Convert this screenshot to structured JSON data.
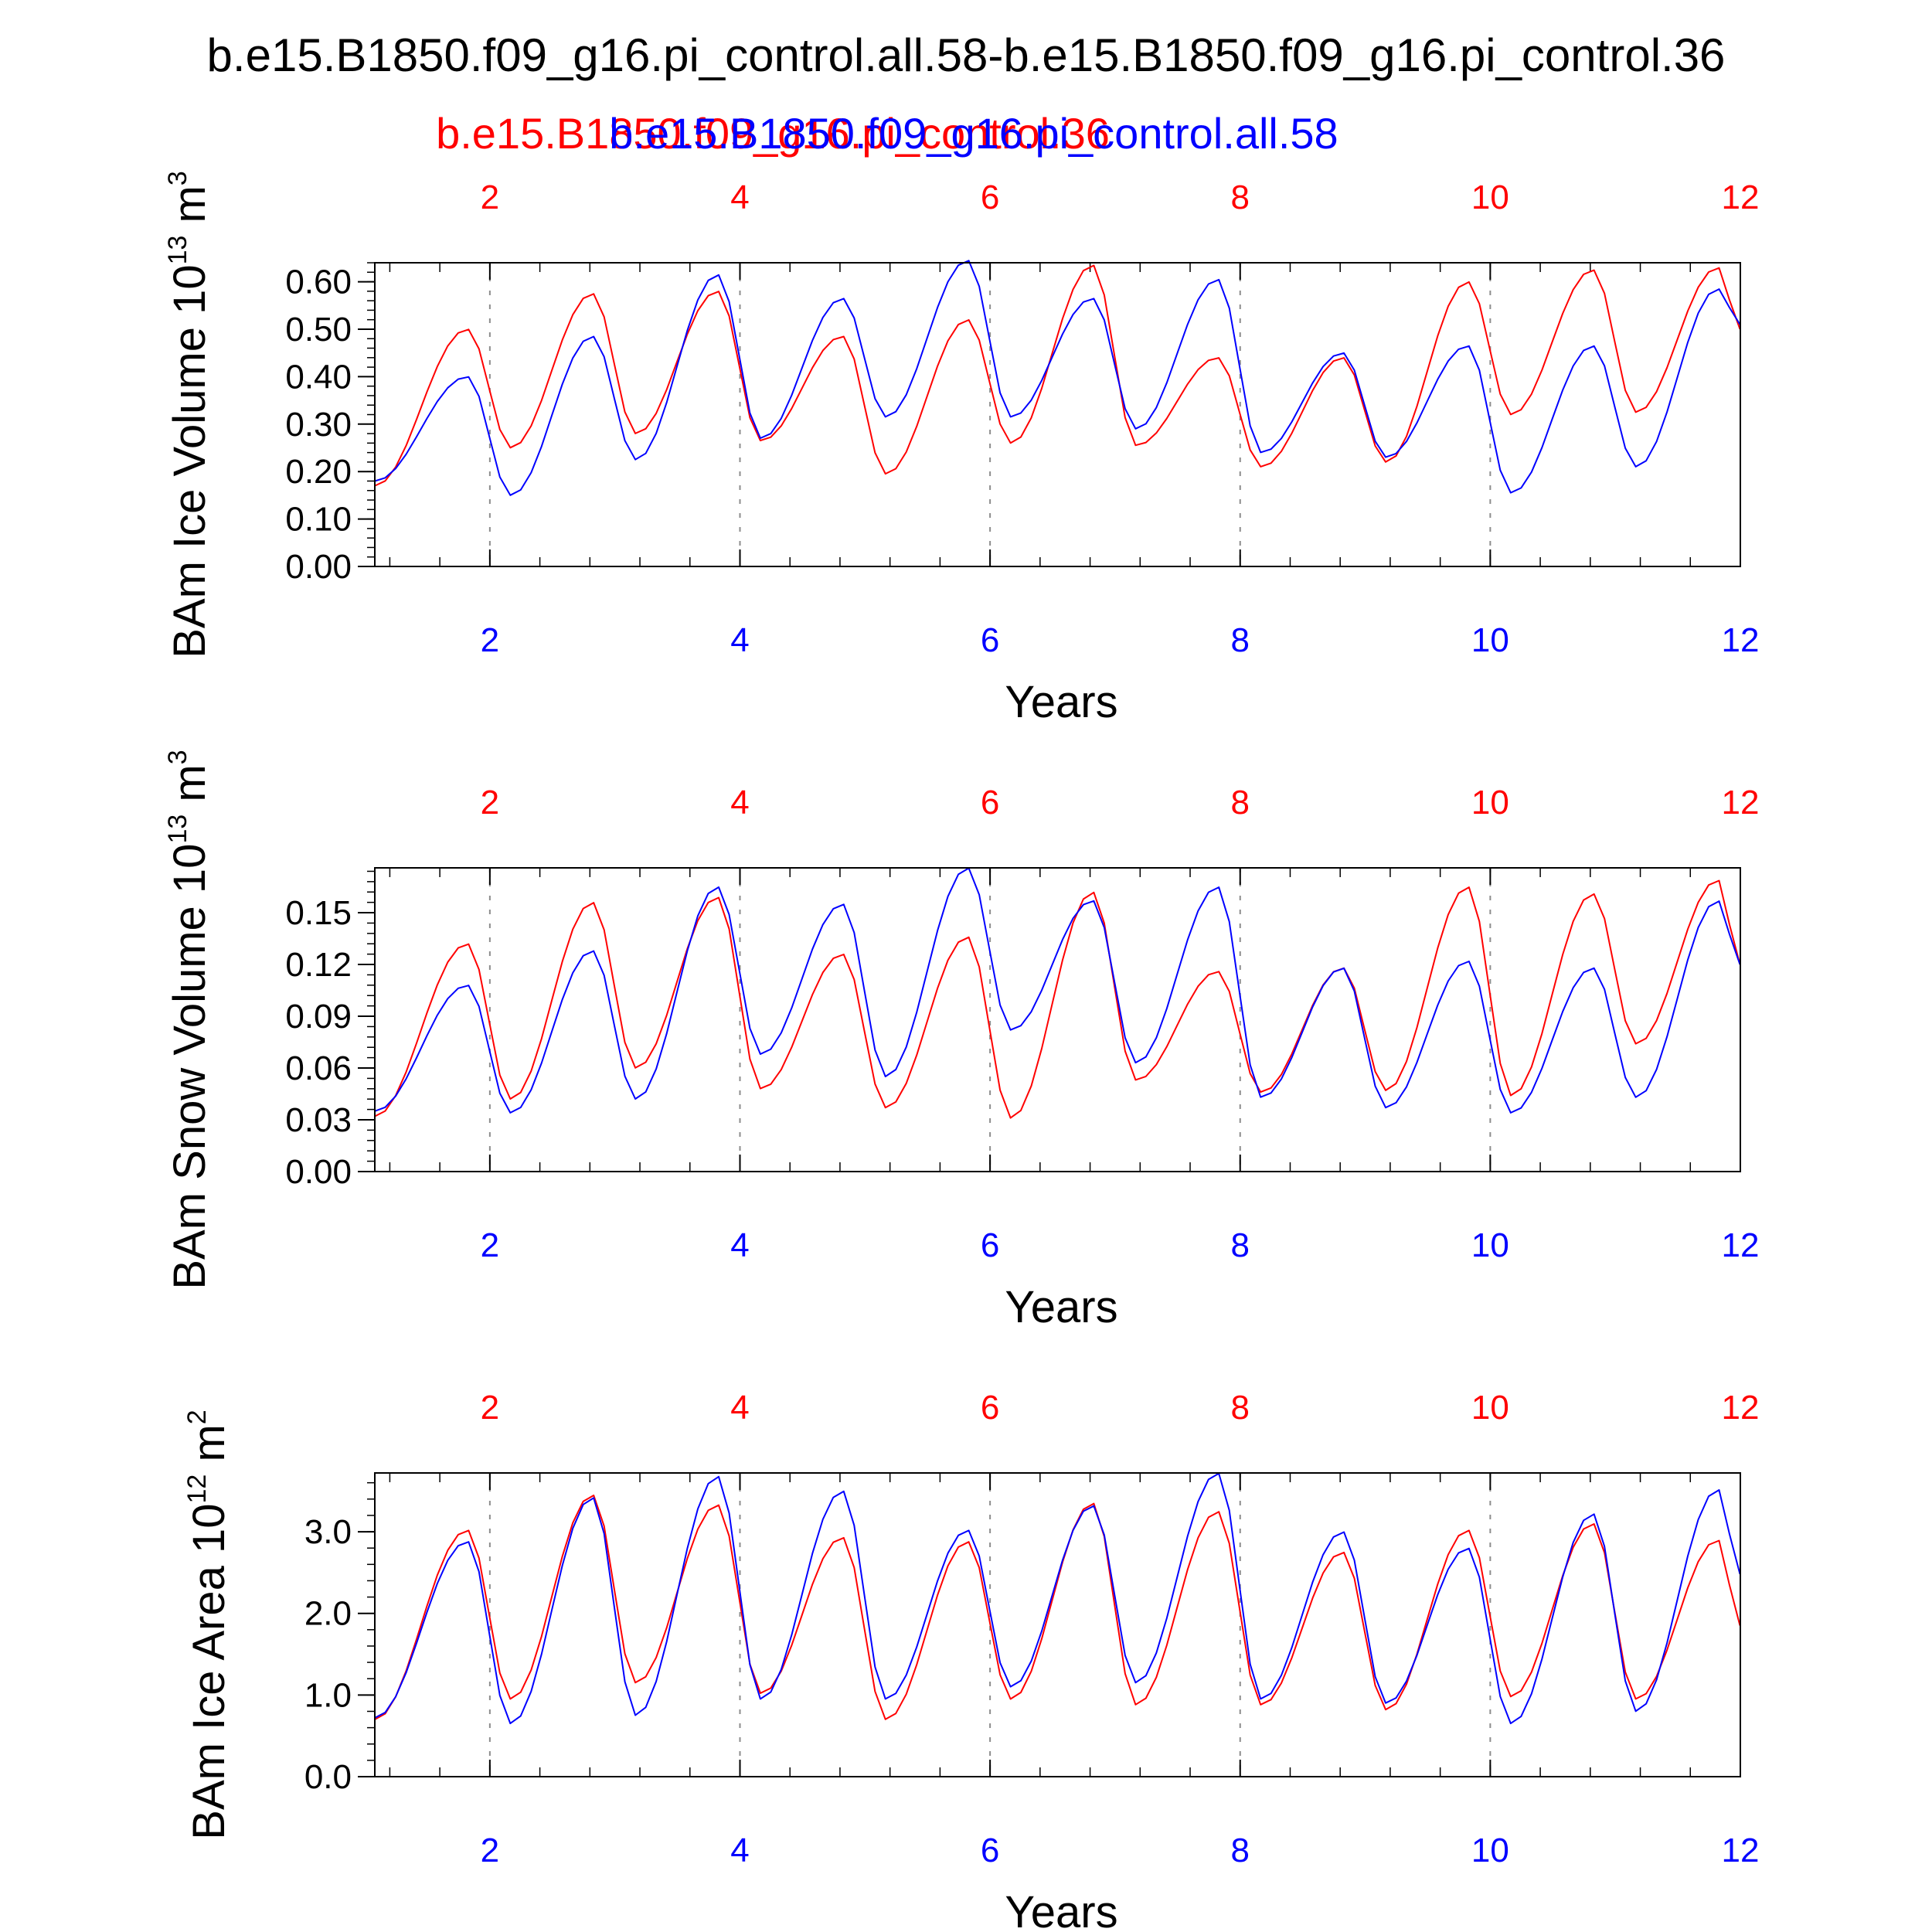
{
  "figure": {
    "title": "b.e15.B1850.f09_g16.pi_control.all.58-b.e15.B1850.f09_g16.pi_control.36",
    "legend": {
      "series_a_label": "b.e15.B1850.f09_g16.pi_control.36",
      "series_b_label": "b.e15.B1850.f09_g16.pi_control.all.58"
    },
    "colors": {
      "series_a": "#ff0000",
      "series_b": "#0000ff",
      "axis": "#000000",
      "grid": "#8c8c8c"
    }
  },
  "chart_data": [
    {
      "type": "line",
      "ylabel_base": "BAm Ice Volume 10",
      "ylabel_exp": "13",
      "ylabel_unit": " m",
      "ylabel_unit_exp": "3",
      "xlabel": "Years",
      "xlim": [
        1.08,
        12.0
      ],
      "ylim": [
        0.0,
        0.64
      ],
      "xticks": [
        2,
        4,
        6,
        8,
        10,
        12
      ],
      "xtick_labels": [
        "2",
        "4",
        "6",
        "8",
        "10",
        "12"
      ],
      "yticks": [
        0.0,
        0.1,
        0.2,
        0.3,
        0.4,
        0.5,
        0.6
      ],
      "ytick_labels": [
        "0.00",
        "0.10",
        "0.20",
        "0.30",
        "0.40",
        "0.50",
        "0.60"
      ],
      "series": [
        {
          "name": "b.e15.B1850.f09_g16.pi_control.36",
          "peaks": [
            0.5,
            0.575,
            0.58,
            0.485,
            0.52,
            0.635,
            0.44,
            0.44,
            0.6,
            0.625,
            0.63
          ],
          "troughs": [
            0.17,
            0.25,
            0.28,
            0.265,
            0.195,
            0.26,
            0.255,
            0.21,
            0.22,
            0.32,
            0.325,
            0.5
          ]
        },
        {
          "name": "b.e15.B1850.f09_g16.pi_control.all.58",
          "peaks": [
            0.4,
            0.485,
            0.615,
            0.565,
            0.645,
            0.565,
            0.605,
            0.45,
            0.465,
            0.465,
            0.585
          ],
          "troughs": [
            0.18,
            0.15,
            0.225,
            0.27,
            0.315,
            0.315,
            0.29,
            0.24,
            0.23,
            0.155,
            0.21,
            0.51
          ]
        }
      ]
    },
    {
      "type": "line",
      "ylabel_base": "BAm Snow Volume 10",
      "ylabel_exp": "13",
      "ylabel_unit": " m",
      "ylabel_unit_exp": "3",
      "xlabel": "Years",
      "xlim": [
        1.08,
        12.0
      ],
      "ylim": [
        0.0,
        0.176
      ],
      "xticks": [
        2,
        4,
        6,
        8,
        10,
        12
      ],
      "xtick_labels": [
        "2",
        "4",
        "6",
        "8",
        "10",
        "12"
      ],
      "yticks": [
        0.0,
        0.03,
        0.06,
        0.09,
        0.12,
        0.15
      ],
      "ytick_labels": [
        "0.00",
        "0.03",
        "0.06",
        "0.09",
        "0.12",
        "0.15"
      ],
      "series": [
        {
          "name": "b.e15.B1850.f09_g16.pi_control.36",
          "peaks": [
            0.132,
            0.156,
            0.159,
            0.126,
            0.136,
            0.162,
            0.116,
            0.118,
            0.165,
            0.161,
            0.169
          ],
          "troughs": [
            0.032,
            0.042,
            0.06,
            0.048,
            0.037,
            0.031,
            0.053,
            0.046,
            0.047,
            0.044,
            0.074,
            0.12
          ]
        },
        {
          "name": "b.e15.B1850.f09_g16.pi_control.all.58",
          "peaks": [
            0.108,
            0.128,
            0.165,
            0.155,
            0.176,
            0.157,
            0.165,
            0.118,
            0.122,
            0.118,
            0.157
          ],
          "troughs": [
            0.035,
            0.034,
            0.042,
            0.068,
            0.055,
            0.082,
            0.063,
            0.043,
            0.037,
            0.034,
            0.043,
            0.12
          ]
        }
      ]
    },
    {
      "type": "line",
      "ylabel_base": "BAm Ice Area 10",
      "ylabel_exp": "12",
      "ylabel_unit": " m",
      "ylabel_unit_exp": "2",
      "xlabel": "Years",
      "xlim": [
        1.08,
        12.0
      ],
      "ylim": [
        0.0,
        3.72
      ],
      "xticks": [
        2,
        4,
        6,
        8,
        10,
        12
      ],
      "xtick_labels": [
        "2",
        "4",
        "6",
        "8",
        "10",
        "12"
      ],
      "yticks": [
        0.0,
        1.0,
        2.0,
        3.0
      ],
      "ytick_labels": [
        "0.0",
        "1.0",
        "2.0",
        "3.0"
      ],
      "series": [
        {
          "name": "b.e15.B1850.f09_g16.pi_control.36",
          "peaks": [
            3.02,
            3.45,
            3.33,
            2.93,
            2.88,
            3.35,
            3.25,
            2.75,
            3.02,
            3.1,
            2.9
          ],
          "troughs": [
            0.7,
            0.95,
            1.15,
            1.02,
            0.7,
            0.95,
            0.88,
            0.88,
            0.82,
            0.98,
            0.95,
            1.85
          ]
        },
        {
          "name": "b.e15.B1850.f09_g16.pi_control.all.58",
          "peaks": [
            2.88,
            3.42,
            3.68,
            3.5,
            3.02,
            3.32,
            3.72,
            3.0,
            2.8,
            3.22,
            3.52
          ],
          "troughs": [
            0.72,
            0.65,
            0.75,
            0.95,
            0.95,
            1.1,
            1.15,
            0.95,
            0.9,
            0.65,
            0.8,
            2.48
          ]
        }
      ]
    }
  ]
}
